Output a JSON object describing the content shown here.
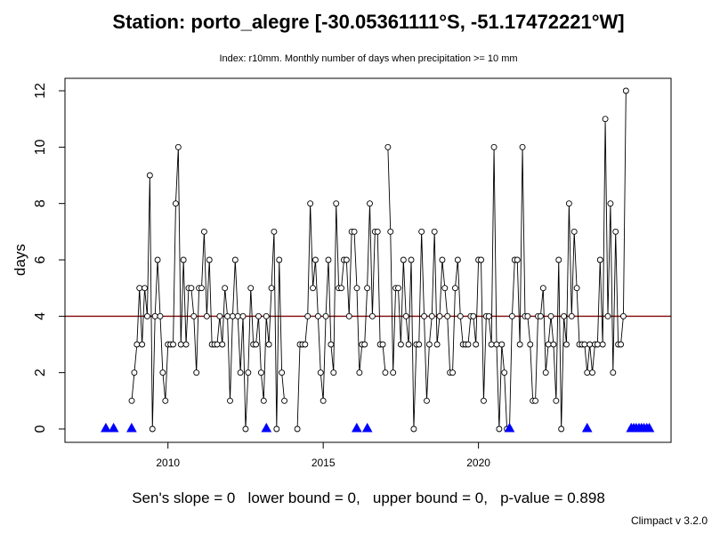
{
  "chart_data": {
    "type": "line",
    "title": "Station: porto_alegre [-30.05361111°S, -51.17472221°W]",
    "subtitle": "Index: r10mm. Monthly number of days when precipitation >= 10 mm",
    "xlabel": "",
    "ylabel": "days",
    "xlim": [
      2007.4,
      2025.6
    ],
    "ylim": [
      -0.25,
      12.3
    ],
    "x_ticks": [
      2010,
      2015,
      2020
    ],
    "y_ticks": [
      0,
      2,
      4,
      6,
      8,
      10,
      12
    ],
    "grid": false,
    "start_year": 2008,
    "series": [
      {
        "name": "",
        "color": "#000000",
        "segments": [
          {
            "start_month": 1,
            "values": [
              0
            ]
          },
          {
            "start_month": 4,
            "values": [
              0
            ]
          },
          {
            "start_month": 11,
            "values": [
              1,
              2,
              3,
              5,
              3,
              5,
              4,
              9,
              0,
              4,
              6,
              4,
              2,
              1,
              3,
              3,
              3,
              8,
              10,
              3,
              6,
              3,
              5,
              5,
              4,
              2,
              5,
              5,
              7,
              4,
              6,
              3,
              3,
              3,
              4,
              3,
              5,
              4,
              1,
              4,
              6,
              4,
              2,
              4,
              0,
              2,
              5,
              3,
              3,
              4,
              2,
              1,
              4,
              3,
              5,
              7,
              0,
              6,
              2,
              1
            ]
          },
          {
            "start_month": 3,
            "values": [
              0,
              3,
              3,
              3,
              4,
              8,
              5,
              6,
              4,
              2,
              1,
              4,
              6,
              3,
              2,
              8,
              5,
              5,
              6,
              6,
              4,
              7,
              7,
              5,
              2,
              3,
              3,
              5,
              8,
              4,
              7,
              7,
              3,
              3,
              2
            ]
          },
          {
            "start_month": 2,
            "values": [
              10,
              7,
              2,
              5,
              5,
              3,
              6,
              4,
              3,
              6,
              0,
              3,
              3,
              7,
              4,
              1,
              3,
              4,
              7,
              3,
              4,
              6,
              5,
              4,
              2,
              2,
              5,
              6,
              4,
              3,
              3,
              3,
              4,
              4,
              3,
              6,
              6,
              1,
              4,
              4,
              3,
              10,
              3,
              0,
              3,
              2,
              0
            ]
          },
          {
            "start_month": 1,
            "values": [
              0,
              4,
              6,
              6,
              3,
              10,
              4,
              4,
              3,
              1,
              1,
              4,
              4,
              5,
              2,
              3,
              4,
              3,
              1,
              6,
              0,
              4,
              3,
              8,
              4,
              7,
              5,
              3,
              3,
              3,
              2,
              3,
              2,
              3,
              3,
              6,
              3,
              11,
              4,
              8,
              2,
              7,
              3,
              3,
              4,
              12
            ]
          },
          {
            "start_month": 12,
            "values": [
              0,
              0,
              0,
              0,
              0,
              0,
              0,
              0
            ]
          }
        ]
      }
    ],
    "reference_line": {
      "value": 4,
      "color": "#8b1a1a"
    },
    "zero_markers": {
      "shape": "triangle",
      "color": "#0000ff",
      "x": [
        2008.0,
        2008.25,
        2008.83,
        2013.17,
        2016.08,
        2016.42,
        2021.0,
        2023.5,
        2024.92,
        2025.0,
        2025.08,
        2025.17,
        2025.25,
        2025.33,
        2025.42,
        2025.5
      ]
    },
    "slope_text": "Sen's slope = 0   lower bound = 0,   upper bound = 0,   p-value = 0.898",
    "credit": "Climpact v 3.2.0"
  }
}
